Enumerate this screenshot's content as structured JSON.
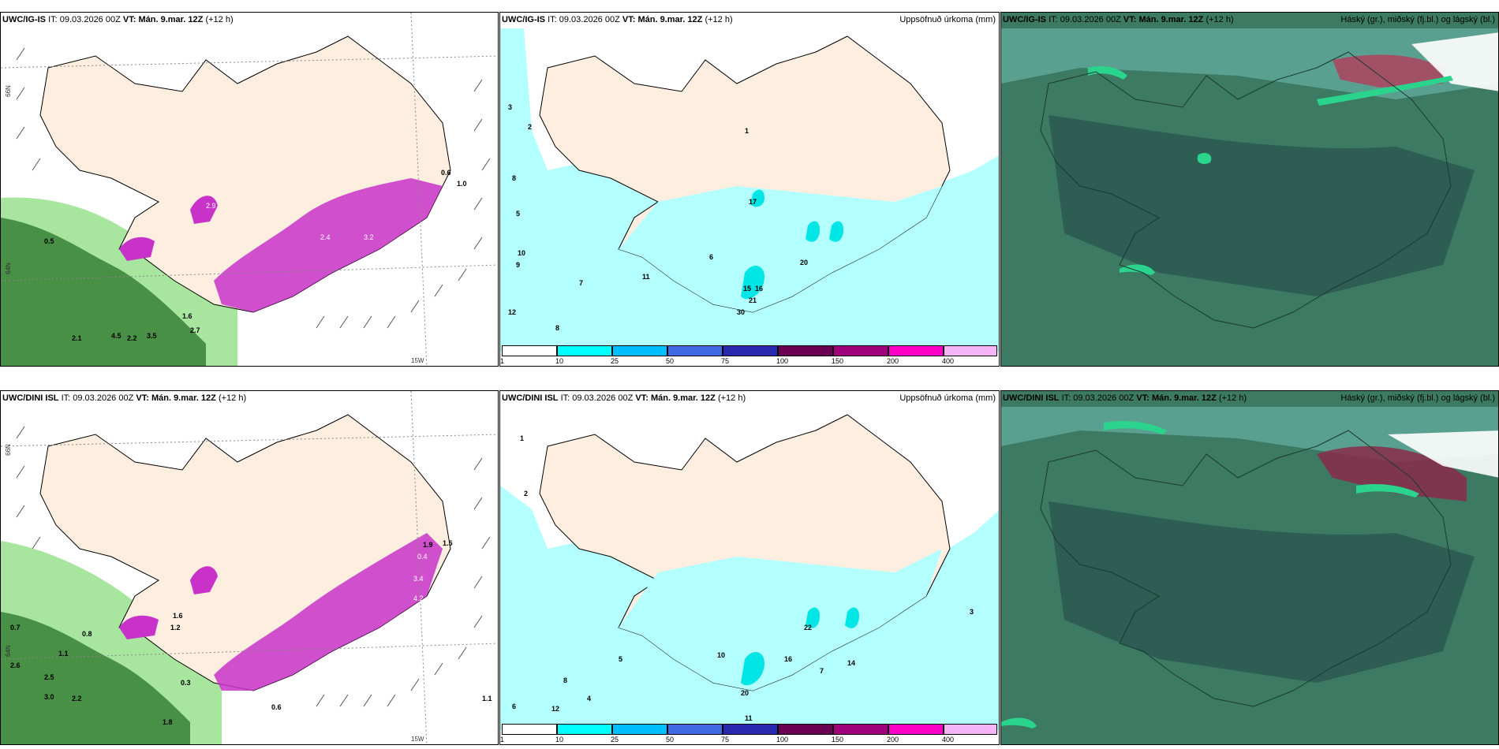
{
  "rows": [
    {
      "model": "UWC/IG-IS",
      "it_label": "IT:",
      "it_value": "09.03.2026 00Z",
      "vt_label": "VT:",
      "vt_value": "Mán. 9.mar. 12Z",
      "lead": "(+12 h)"
    },
    {
      "model": "UWC/DINI ISL",
      "it_label": "IT:",
      "it_value": "09.03.2026 00Z",
      "vt_label": "VT:",
      "vt_value": "Mán. 9.mar. 12Z",
      "lead": "(+12 h)"
    }
  ],
  "precip_title": "Uppsöfnuð úrkoma (mm)",
  "cloud_title": "Háský (gr.), miðský (fj.bl.) og lágský (bl.)",
  "axis": {
    "lat66": "66N",
    "lat64": "64N",
    "lon15": "15W"
  },
  "colorbar": {
    "ticks": [
      "1",
      "10",
      "25",
      "50",
      "75",
      "100",
      "150",
      "200",
      "400"
    ],
    "colors": [
      "#ffffff",
      "#00ffff",
      "#00bfff",
      "#4169e1",
      "#2a2ab0",
      "#6a0050",
      "#a0007a",
      "#ff00c8",
      "#f5b4f5"
    ]
  },
  "top_wind_labels": [
    "0.5",
    "2.9",
    "2.4",
    "3.2",
    "2.1",
    "3.5",
    "4.5",
    "1.6",
    "2.7",
    "2.2",
    "0.6",
    "1.0"
  ],
  "top_precip_labels": [
    "3",
    "2",
    "8",
    "5",
    "10",
    "9",
    "12",
    "8",
    "7",
    "6",
    "11",
    "17",
    "16",
    "20",
    "15",
    "30",
    "21",
    "1"
  ],
  "bottom_wind_labels": [
    "0.7",
    "2.6",
    "2.5",
    "3.0",
    "0.8",
    "1.1",
    "0.3",
    "1.5",
    "1.8",
    "0.4",
    "1.9",
    "3.4",
    "4.2",
    "1.6",
    "1.2",
    "0.6",
    "2.2",
    "1.1"
  ],
  "bottom_precip_labels": [
    "1",
    "2",
    "6",
    "8",
    "12",
    "11",
    "10",
    "22",
    "16",
    "20",
    "14",
    "4",
    "3",
    "5",
    "7"
  ],
  "colors": {
    "land": "#fdeee0",
    "precip_light": "#b4ffff",
    "precip_mid": "#00e6e6",
    "cloud_base": "#3c7a64",
    "cloud_dark": "#2c5a52",
    "cloud_green": "#2ad48c",
    "cloud_red": "#b43c5a",
    "green_dark": "#1f5a1f",
    "green_light": "#a8e6a0",
    "purple": "#c832c8"
  }
}
